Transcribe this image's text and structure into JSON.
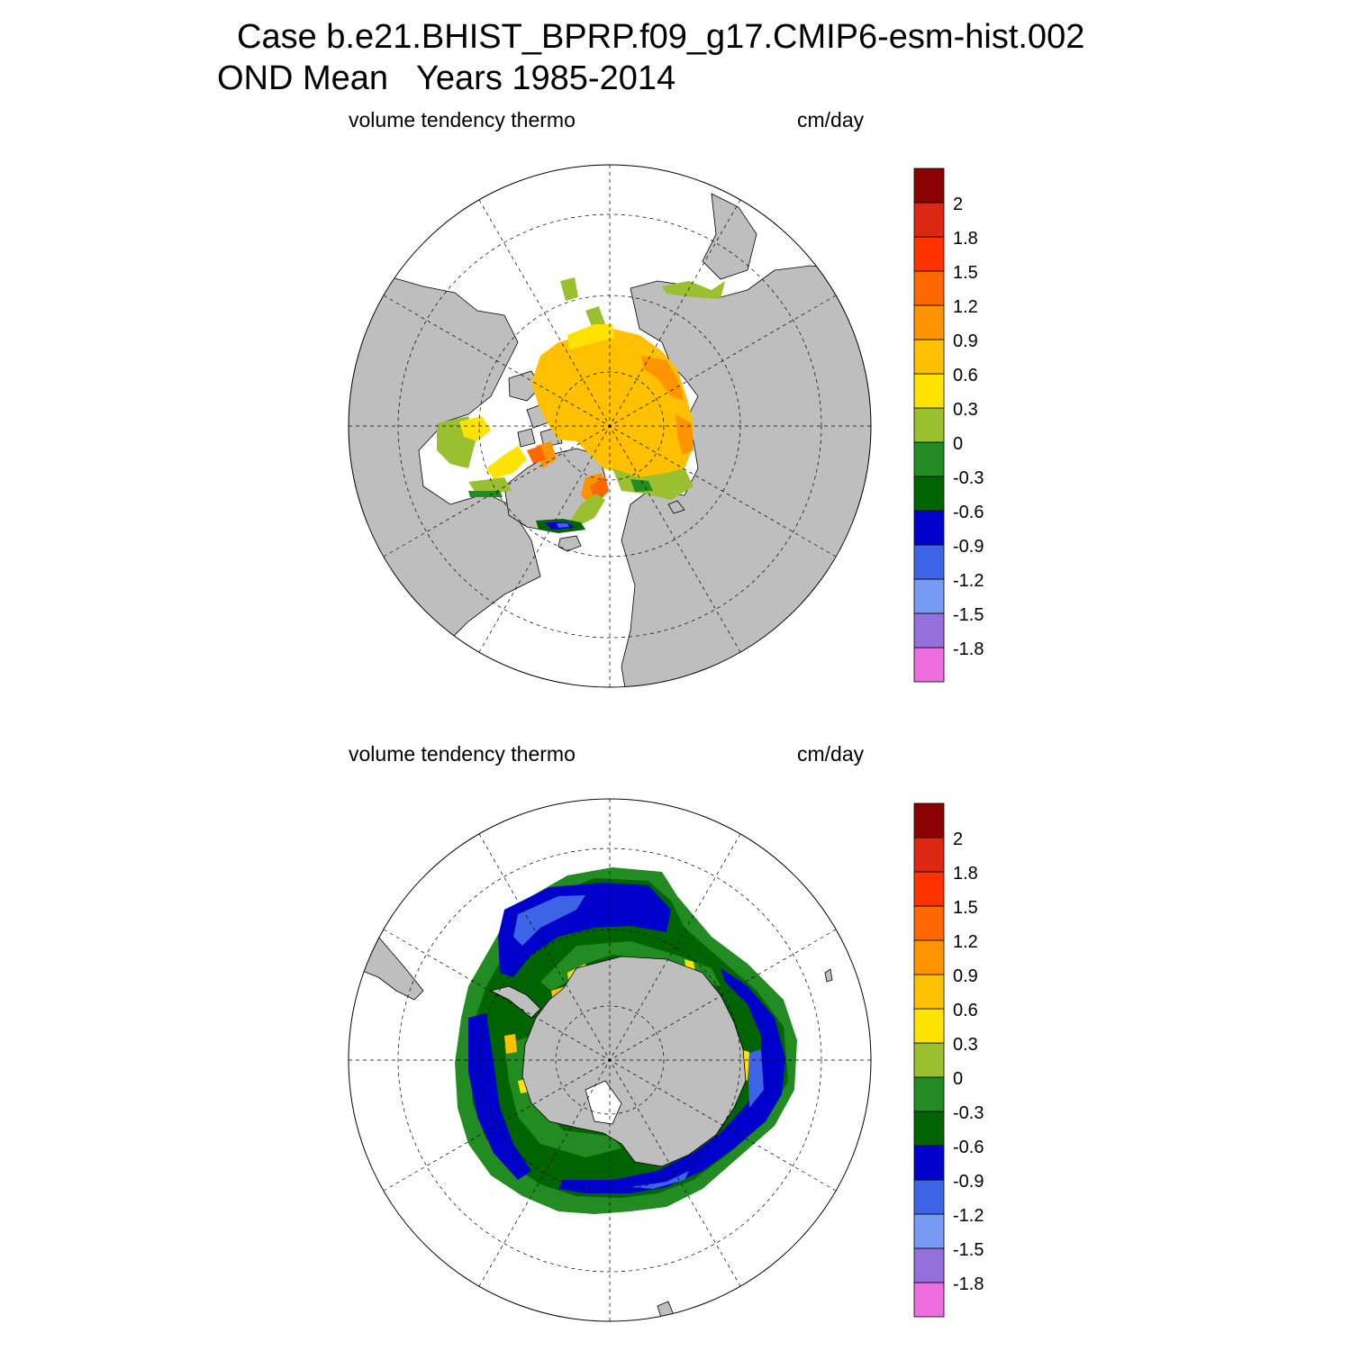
{
  "title": {
    "line1": "Case b.e21.BHIST_BPRP.f09_g17.CMIP6-esm-hist.002",
    "line2": "OND Mean   Years 1985-2014"
  },
  "panels": [
    {
      "id": "north",
      "left_label": "volume tendency thermo",
      "right_label": "cm/day",
      "hemisphere": "Arctic (north polar stereographic)"
    },
    {
      "id": "south",
      "left_label": "volume tendency thermo",
      "right_label": "cm/day",
      "hemisphere": "Antarctic (south polar stereographic)"
    }
  ],
  "colorbar": {
    "colors": [
      "#ee6ee0",
      "#9370db",
      "#779bf2",
      "#3d63e6",
      "#0000cc",
      "#006400",
      "#228b22",
      "#9abf2f",
      "#ffe300",
      "#ffc000",
      "#ff9400",
      "#ff6700",
      "#ff3200",
      "#dc2812",
      "#8b0000"
    ],
    "tick_labels": [
      "-1.8",
      "-1.5",
      "-1.2",
      "-0.9",
      "-0.6",
      "-0.3",
      "0",
      "0.3",
      "0.6",
      "0.9",
      "1.2",
      "1.5",
      "1.8",
      "2"
    ]
  },
  "style": {
    "land": "#bebebe",
    "ocean": "#ffffff",
    "coast": "#000000"
  }
}
